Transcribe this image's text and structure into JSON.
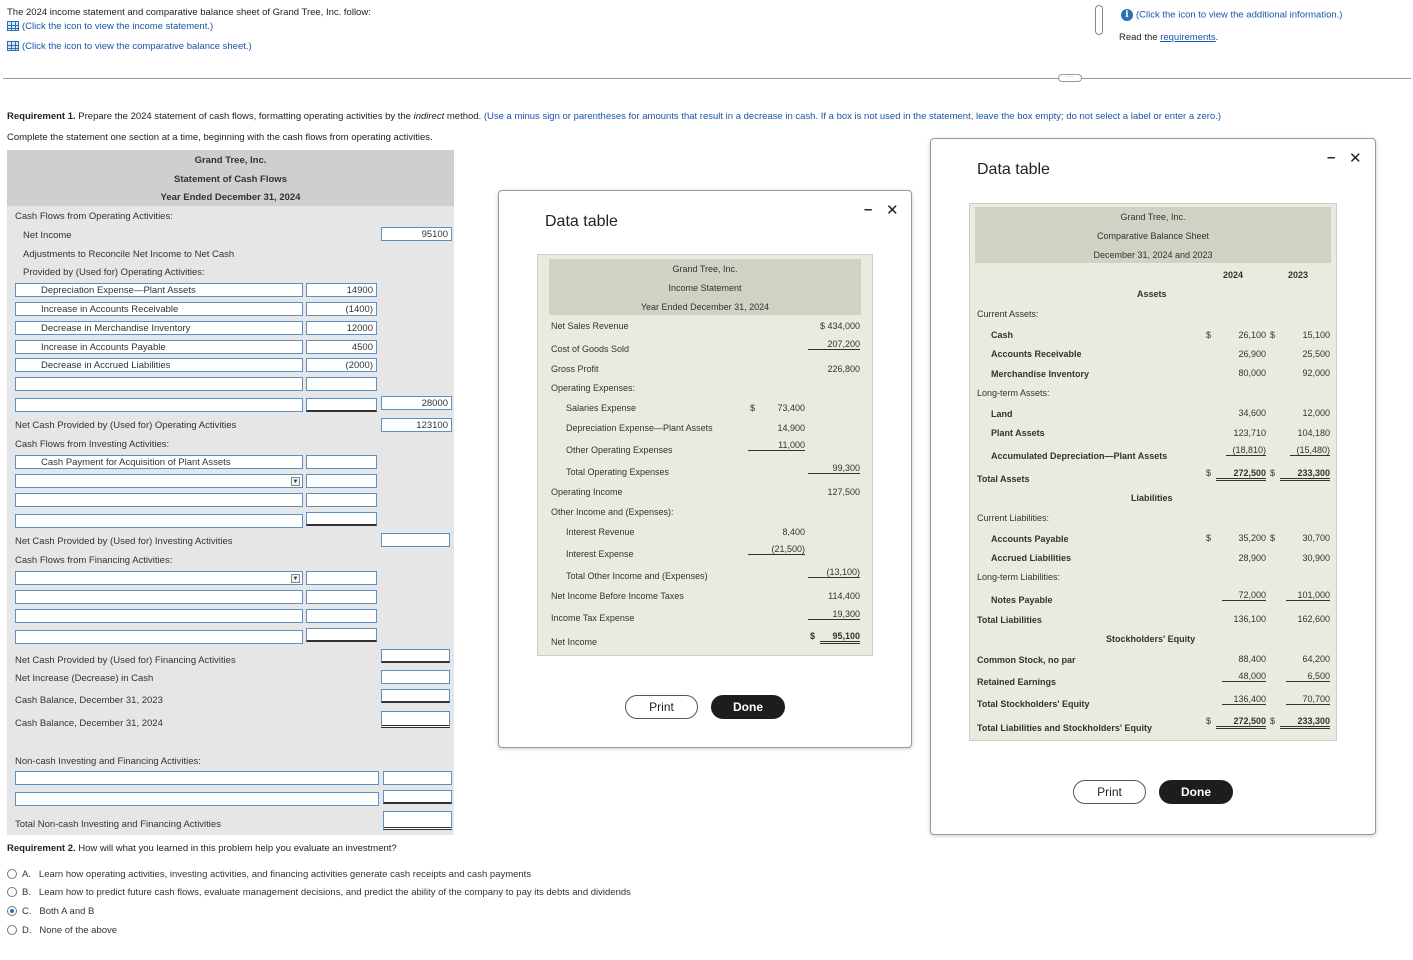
{
  "intro": {
    "text": "The 2024 income statement and comparative balance sheet of Grand Tree, Inc. follow:",
    "link_income": "(Click the icon to view the income statement.)",
    "link_balance": "(Click the icon to view the comparative balance sheet.)",
    "link_info": "(Click the icon to view the additional information.)",
    "read_the": "Read the",
    "requirements_link": "requirements",
    "period": "."
  },
  "req1": {
    "bold": "Requirement 1.",
    "text": " Prepare the 2024 statement of cash flows, formatting operating activities by the ",
    "italic": "indirect",
    "text2": " method. ",
    "note": "(Use a minus sign or parentheses for amounts that result in a decrease in cash. If a box is not used in the statement, leave the box empty; do not select a label or enter a zero.)",
    "sub": "Complete the statement one section at a time, beginning with the cash flows from operating activities."
  },
  "scf": {
    "company": "Grand Tree, Inc.",
    "title": "Statement of Cash Flows",
    "period": "Year Ended December 31, 2024",
    "op_heading": "Cash Flows from Operating Activities:",
    "net_income_label": "Net Income",
    "net_income_value": "95100",
    "adj1": "Adjustments to Reconcile Net Income to Net Cash",
    "adj2": "Provided by (Used for) Operating Activities:",
    "op_items": [
      {
        "label": "Depreciation Expense—Plant Assets",
        "value": "14900"
      },
      {
        "label": "Increase in Accounts Receivable",
        "value": "(1400)"
      },
      {
        "label": "Decrease in Merchandise Inventory",
        "value": "12000"
      },
      {
        "label": "Increase in Accounts Payable",
        "value": "4500"
      },
      {
        "label": "Decrease in Accrued Liabilities",
        "value": "(2000)"
      }
    ],
    "op_total_adj": "28000",
    "net_op_label": "Net Cash Provided by (Used for) Operating Activities",
    "net_op_value": "123100",
    "inv_heading": "Cash Flows from Investing Activities:",
    "inv_item1": "Cash Payment for Acquisition of Plant Assets",
    "net_inv_label": "Net Cash Provided by (Used for) Investing Activities",
    "fin_heading": "Cash Flows from Financing Activities:",
    "net_fin_label": "Net Cash Provided by (Used for) Financing Activities",
    "net_increase_label": "Net Increase (Decrease) in Cash",
    "bal_2023_label": "Cash Balance, December 31, 2023",
    "bal_2024_label": "Cash Balance, December 31, 2024",
    "noncash_heading": "Non-cash Investing and Financing Activities:",
    "noncash_total_label": "Total Non-cash Investing and Financing Activities"
  },
  "req2": {
    "bold": "Requirement 2.",
    "text": " How will what you learned in this problem help you evaluate an investment?",
    "options": [
      {
        "letter": "A.",
        "text": "Learn how operating activities, investing activities, and financing activities generate cash receipts and cash payments",
        "selected": false
      },
      {
        "letter": "B.",
        "text": "Learn how to predict future cash flows, evaluate management decisions, and predict the ability of the company to pay its debts and dividends",
        "selected": false
      },
      {
        "letter": "C.",
        "text": "Both A and B",
        "selected": true
      },
      {
        "letter": "D.",
        "text": "None of the above",
        "selected": false
      }
    ]
  },
  "income_dialog": {
    "title": "Data table",
    "minimize": "–",
    "close": "✕",
    "company": "Grand Tree, Inc.",
    "statement": "Income Statement",
    "period": "Year Ended December 31, 2024",
    "rows": [
      {
        "label": "Net Sales Revenue",
        "col1": "",
        "col2": "$ 434,000"
      },
      {
        "label": "Cost of Goods Sold",
        "col1": "",
        "col2": "207,200"
      },
      {
        "label": "Gross Profit",
        "col1": "",
        "col2": "226,800"
      },
      {
        "label": "Operating Expenses:",
        "col1": "",
        "col2": ""
      },
      {
        "label": "Salaries Expense",
        "col1_sign": "$",
        "col1": "73,400",
        "col2": ""
      },
      {
        "label": "Depreciation Expense—Plant Assets",
        "col1": "14,900",
        "col2": ""
      },
      {
        "label": "Other Operating Expenses",
        "col1": "11,000",
        "col2": ""
      },
      {
        "label": "Total Operating Expenses",
        "col1": "",
        "col2": "99,300"
      },
      {
        "label": "Operating Income",
        "col1": "",
        "col2": "127,500"
      },
      {
        "label": "Other Income and (Expenses):",
        "col1": "",
        "col2": ""
      },
      {
        "label": "Interest Revenue",
        "col1": "8,400",
        "col2": ""
      },
      {
        "label": "Interest Expense",
        "col1": "(21,500)",
        "col2": ""
      },
      {
        "label": "Total Other Income and (Expenses)",
        "col1": "",
        "col2": "(13,100)"
      },
      {
        "label": "Net Income Before Income Taxes",
        "col1": "",
        "col2": "114,400"
      },
      {
        "label": "Income Tax Expense",
        "col1": "",
        "col2": "19,300"
      },
      {
        "label": "Net Income",
        "col1": "",
        "col2_sign": "$",
        "col2": "95,100"
      }
    ],
    "print": "Print",
    "done": "Done"
  },
  "balance_dialog": {
    "title": "Data table",
    "minimize": "–",
    "close": "✕",
    "company": "Grand Tree, Inc.",
    "statement": "Comparative Balance Sheet",
    "period": "December 31, 2024 and 2023",
    "col_2024": "2024",
    "col_2023": "2023",
    "assets_heading": "Assets",
    "current_assets": "Current Assets:",
    "cash": {
      "label": "Cash",
      "sign": "$",
      "v2024": "26,100",
      "sign2": "$",
      "v2023": "15,100"
    },
    "ar": {
      "label": "Accounts Receivable",
      "v2024": "26,900",
      "v2023": "25,500"
    },
    "inv": {
      "label": "Merchandise Inventory",
      "v2024": "80,000",
      "v2023": "92,000"
    },
    "lt_assets": "Long-term Assets:",
    "land": {
      "label": "Land",
      "v2024": "34,600",
      "v2023": "12,000"
    },
    "plant": {
      "label": "Plant Assets",
      "v2024": "123,710",
      "v2023": "104,180"
    },
    "accum": {
      "label": "Accumulated Depreciation—Plant Assets",
      "v2024": "(18,810)",
      "v2023": "(15,480)"
    },
    "total_assets": {
      "label": "Total Assets",
      "sign": "$",
      "v2024": "272,500",
      "sign2": "$",
      "v2023": "233,300"
    },
    "liab_heading": "Liabilities",
    "current_liab": "Current Liabilities:",
    "ap": {
      "label": "Accounts Payable",
      "sign": "$",
      "v2024": "35,200",
      "sign2": "$",
      "v2023": "30,700"
    },
    "accrued": {
      "label": "Accrued Liabilities",
      "v2024": "28,900",
      "v2023": "30,900"
    },
    "lt_liab": "Long-term Liabilities:",
    "notes": {
      "label": "Notes Payable",
      "v2024": "72,000",
      "v2023": "101,000"
    },
    "total_liab": {
      "label": "Total Liabilities",
      "v2024": "136,100",
      "v2023": "162,600"
    },
    "equity_heading": "Stockholders' Equity",
    "cs": {
      "label": "Common Stock, no par",
      "v2024": "88,400",
      "v2023": "64,200"
    },
    "re": {
      "label": "Retained Earnings",
      "v2024": "48,000",
      "v2023": "6,500"
    },
    "total_eq": {
      "label": "Total Stockholders' Equity",
      "v2024": "136,400",
      "v2023": "70,700"
    },
    "total_le": {
      "label": "Total Liabilities and Stockholders' Equity",
      "sign": "$",
      "v2024": "272,500",
      "sign2": "$",
      "v2023": "233,300"
    },
    "print": "Print",
    "done": "Done"
  },
  "divider_handle": "····"
}
